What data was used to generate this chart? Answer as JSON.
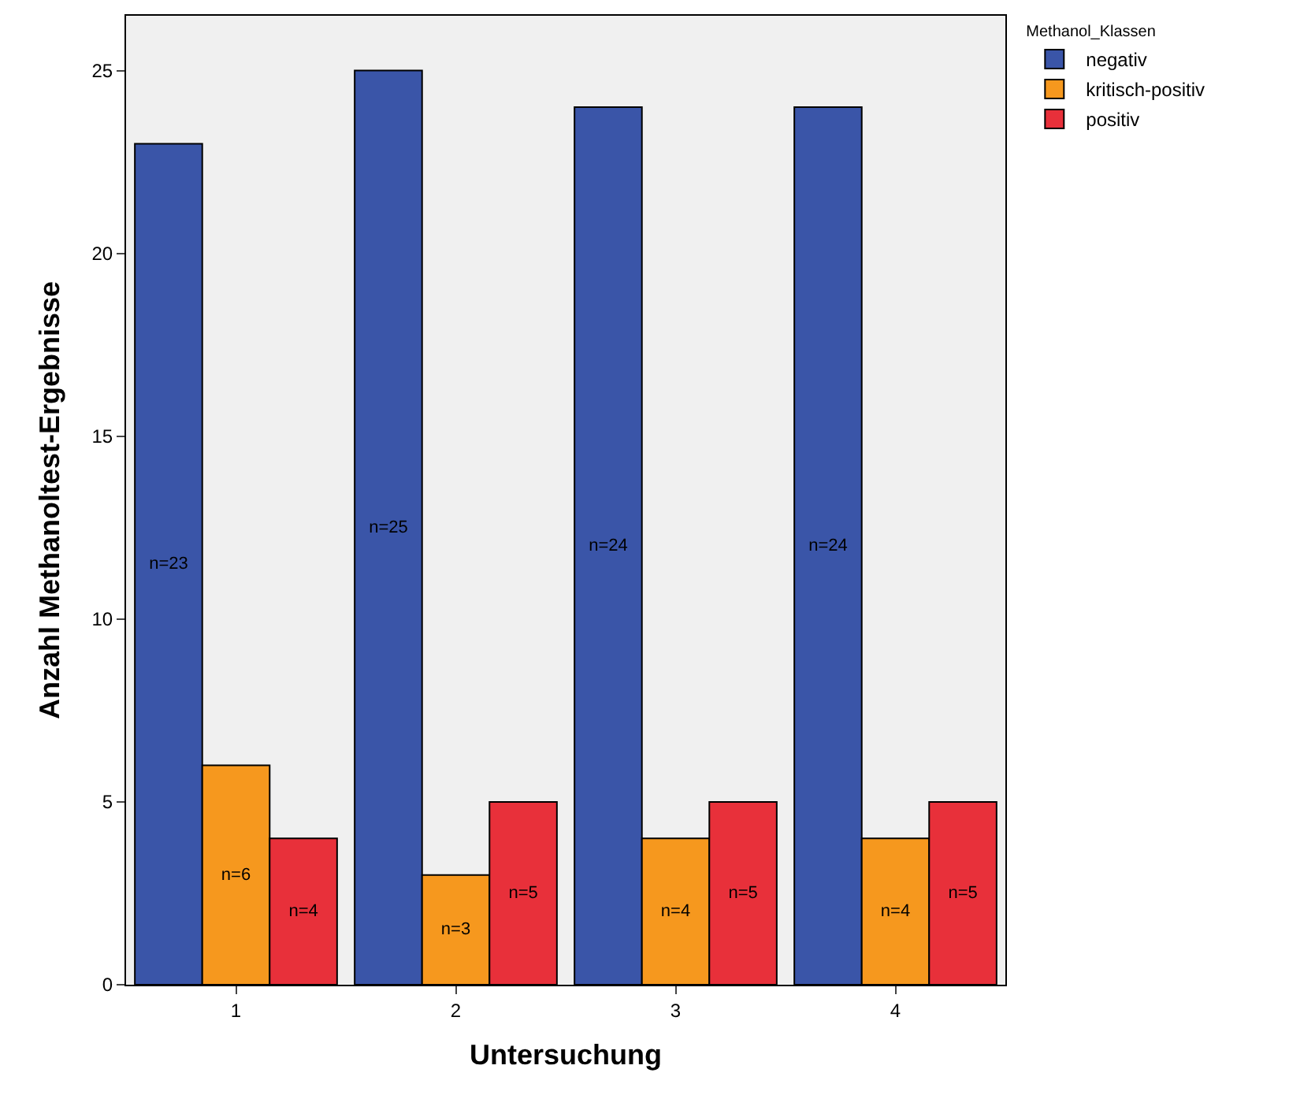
{
  "chart_data": {
    "type": "bar",
    "xlabel": "Untersuchung",
    "ylabel": "Anzahl Methanoltest-Ergebnisse",
    "legend_title": "Methanol_Klassen",
    "categories": [
      "1",
      "2",
      "3",
      "4"
    ],
    "series": [
      {
        "name": "negativ",
        "color": "#3a55a8",
        "values": [
          23,
          25,
          24,
          24
        ],
        "value_labels": [
          "n=23",
          "n=25",
          "n=24",
          "n=24"
        ]
      },
      {
        "name": "kritisch-positiv",
        "color": "#f6981e",
        "values": [
          6,
          3,
          4,
          4
        ],
        "value_labels": [
          "n=6",
          "n=3",
          "n=4",
          "n=4"
        ]
      },
      {
        "name": "positiv",
        "color": "#e8303a",
        "values": [
          4,
          5,
          5,
          5
        ],
        "value_labels": [
          "n=4",
          "n=5",
          "n=5",
          "n=5"
        ]
      }
    ],
    "ylim": [
      0,
      26.5
    ],
    "yticks": [
      0,
      5,
      10,
      15,
      20,
      25
    ],
    "grid": false,
    "legend": "top right"
  }
}
